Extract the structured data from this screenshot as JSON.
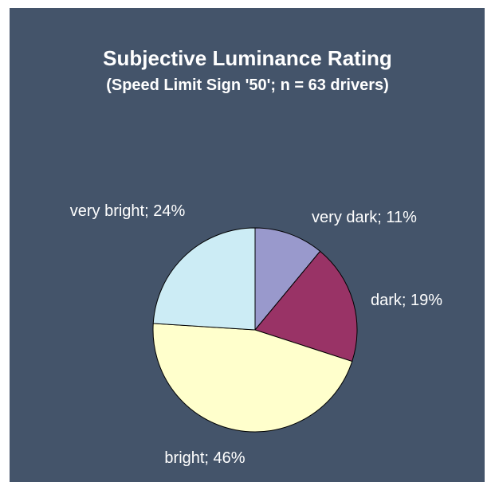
{
  "chart_data": {
    "type": "pie",
    "title": "Subjective Luminance Rating",
    "subtitle": "(Speed Limit Sign '50'; n = 63 drivers)",
    "categories": [
      "very dark",
      "dark",
      "bright",
      "very bright"
    ],
    "values": [
      11,
      19,
      46,
      24
    ],
    "value_labels": [
      "very dark; 11%",
      "dark; 19%",
      "bright; 46%",
      "very bright; 24%"
    ],
    "colors": [
      "#9999cc",
      "#993366",
      "#ffffcc",
      "#ccecf5"
    ]
  }
}
